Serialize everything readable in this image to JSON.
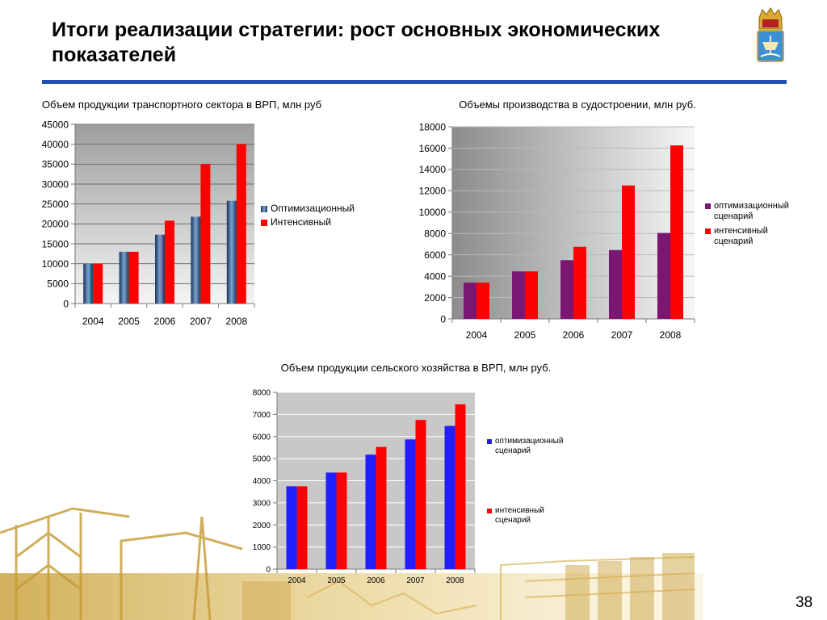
{
  "slide": {
    "title": "Итоги реализации стратегии: рост основных экономических показателей",
    "page_number": "38"
  },
  "chart_data": [
    {
      "type": "bar",
      "title": "Объем продукции транспортного сектора в ВРП, млн руб",
      "categories": [
        "2004",
        "2005",
        "2006",
        "2007",
        "2008"
      ],
      "series": [
        {
          "name": "Оптимизационный",
          "values": [
            10000,
            13000,
            17300,
            21800,
            25800
          ]
        },
        {
          "name": "Интенсивный",
          "values": [
            10000,
            13000,
            20800,
            35000,
            40000
          ]
        }
      ],
      "ylim": [
        0,
        45000
      ],
      "yticks": [
        "0",
        "5000",
        "10000",
        "15000",
        "20000",
        "25000",
        "30000",
        "35000",
        "40000",
        "45000"
      ],
      "grid": true,
      "legend": "right",
      "colors": {
        "plot_bg_top": "#9d9d9d",
        "plot_bg_bottom": "#f4f4f4",
        "series1_dark": "#17335e",
        "series1_light": "#7ea2cf",
        "series2": "#ff0000"
      }
    },
    {
      "type": "bar",
      "title": "Объемы производства в судостроении, млн руб.",
      "categories": [
        "2004",
        "2005",
        "2006",
        "2007",
        "2008"
      ],
      "series": [
        {
          "name": "оптимизационный сценарий",
          "values": [
            3400,
            4450,
            5500,
            6450,
            8050
          ]
        },
        {
          "name": "интенсивный сценарий",
          "values": [
            3400,
            4450,
            6750,
            12500,
            16250
          ]
        }
      ],
      "ylim": [
        0,
        18000
      ],
      "yticks": [
        "0",
        "2000",
        "4000",
        "6000",
        "8000",
        "10000",
        "12000",
        "14000",
        "16000",
        "18000"
      ],
      "grid": true,
      "legend": "right",
      "colors": {
        "plot_bg_left": "#8c8c8c",
        "plot_bg_right": "#f6f6f6",
        "series1": "#7b1673",
        "series2": "#ff0000"
      }
    },
    {
      "type": "bar",
      "title": "Объем продукции сельского хозяйства в ВРП, млн руб.",
      "categories": [
        "2004",
        "2005",
        "2006",
        "2007",
        "2008"
      ],
      "series": [
        {
          "name": "оптимизационный сценарий",
          "values": [
            3750,
            4370,
            5180,
            5870,
            6480
          ]
        },
        {
          "name": "интенсивный сценарий",
          "values": [
            3750,
            4370,
            5530,
            6750,
            7460
          ]
        }
      ],
      "ylim": [
        0,
        8000
      ],
      "yticks": [
        "0",
        "1000",
        "2000",
        "3000",
        "4000",
        "5000",
        "6000",
        "7000",
        "8000"
      ],
      "grid": true,
      "legend": "right",
      "colors": {
        "plot_bg": "#c8c8c8",
        "series1": "#1f1fff",
        "series2": "#ff0000"
      }
    }
  ]
}
